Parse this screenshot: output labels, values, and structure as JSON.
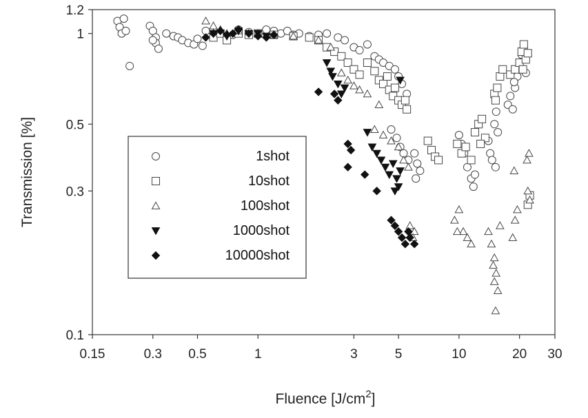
{
  "chart_data": {
    "type": "scatter",
    "title": "",
    "xlabel": "Fluence [J/cm",
    "xlabel_sup": "2",
    "xlabel_close": "]",
    "ylabel": "Transmission [%]",
    "x_scale": "log",
    "y_scale": "log",
    "xlim": [
      0.15,
      30
    ],
    "ylim": [
      0.1,
      1.2
    ],
    "grid": false,
    "legend_position": "left-center",
    "x_ticks": [
      {
        "value": 0.15,
        "label": "0.15"
      },
      {
        "value": 0.3,
        "label": "0.3"
      },
      {
        "value": 0.5,
        "label": "0.5"
      },
      {
        "value": 1,
        "label": "1"
      },
      {
        "value": 3,
        "label": "3"
      },
      {
        "value": 5,
        "label": "5"
      },
      {
        "value": 10,
        "label": "10"
      },
      {
        "value": 20,
        "label": "20"
      },
      {
        "value": 30,
        "label": "30"
      }
    ],
    "y_ticks": [
      {
        "value": 0.1,
        "label": "0.1"
      },
      {
        "value": 0.3,
        "label": "0.3"
      },
      {
        "value": 0.5,
        "label": "0.5"
      },
      {
        "value": 1,
        "label": "1"
      },
      {
        "value": 1.2,
        "label": "1.2"
      }
    ],
    "series": [
      {
        "name": "1shot",
        "marker": "circle-open",
        "points": [
          [
            0.2,
            1.1
          ],
          [
            0.205,
            1.05
          ],
          [
            0.21,
            1.0
          ],
          [
            0.215,
            1.12
          ],
          [
            0.22,
            1.02
          ],
          [
            0.23,
            0.78
          ],
          [
            0.29,
            1.06
          ],
          [
            0.3,
            1.02
          ],
          [
            0.31,
            0.97
          ],
          [
            0.31,
            0.93
          ],
          [
            0.32,
            0.89
          ],
          [
            0.3,
            0.95
          ],
          [
            0.35,
            1.0
          ],
          [
            0.38,
            0.98
          ],
          [
            0.4,
            0.97
          ],
          [
            0.42,
            0.95
          ],
          [
            0.45,
            0.93
          ],
          [
            0.48,
            0.92
          ],
          [
            0.5,
            0.96
          ],
          [
            0.53,
            0.91
          ],
          [
            0.55,
            1.02
          ],
          [
            0.6,
            0.98
          ],
          [
            0.65,
            1.0
          ],
          [
            0.7,
            0.97
          ],
          [
            0.75,
            0.99
          ],
          [
            0.8,
            1.03
          ],
          [
            0.9,
            1.01
          ],
          [
            1.0,
            1.0
          ],
          [
            1.1,
            1.03
          ],
          [
            1.2,
            1.02
          ],
          [
            1.3,
            1.0
          ],
          [
            1.4,
            1.02
          ],
          [
            1.5,
            0.99
          ],
          [
            1.6,
            1.0
          ],
          [
            1.8,
            0.98
          ],
          [
            2.0,
            0.99
          ],
          [
            2.2,
            1.0
          ],
          [
            2.5,
            0.97
          ],
          [
            2.7,
            0.95
          ],
          [
            3.0,
            0.9
          ],
          [
            3.2,
            0.88
          ],
          [
            3.5,
            0.92
          ],
          [
            3.8,
            0.84
          ],
          [
            4.0,
            0.82
          ],
          [
            4.2,
            0.8
          ],
          [
            4.5,
            0.78
          ],
          [
            4.8,
            0.76
          ],
          [
            5.0,
            0.72
          ],
          [
            5.2,
            0.68
          ],
          [
            5.5,
            0.63
          ],
          [
            4.6,
            0.48
          ],
          [
            4.9,
            0.45
          ],
          [
            5.1,
            0.42
          ],
          [
            5.3,
            0.4
          ],
          [
            5.6,
            0.38
          ],
          [
            6.0,
            0.4
          ],
          [
            6.2,
            0.37
          ],
          [
            6.4,
            0.35
          ],
          [
            6.1,
            0.33
          ],
          [
            10.0,
            0.46
          ],
          [
            10.3,
            0.43
          ],
          [
            10.6,
            0.4
          ],
          [
            11.0,
            0.36
          ],
          [
            11.5,
            0.33
          ],
          [
            11.8,
            0.31
          ],
          [
            12.0,
            0.34
          ],
          [
            14.0,
            0.44
          ],
          [
            14.3,
            0.4
          ],
          [
            14.6,
            0.38
          ],
          [
            15.0,
            0.5
          ],
          [
            15.3,
            0.55
          ],
          [
            15.6,
            0.47
          ],
          [
            15.2,
            0.36
          ],
          [
            17.5,
            0.58
          ],
          [
            18.0,
            0.62
          ],
          [
            18.5,
            0.56
          ],
          [
            19.0,
            0.66
          ],
          [
            19.5,
            0.72
          ],
          [
            20.0,
            0.78
          ],
          [
            20.5,
            0.85
          ],
          [
            21.0,
            0.9
          ],
          [
            21.5,
            0.74
          ],
          [
            18.8,
            0.69
          ]
        ]
      },
      {
        "name": "10shot",
        "marker": "square-open",
        "points": [
          [
            0.6,
            0.97
          ],
          [
            0.65,
            1.0
          ],
          [
            0.7,
            0.95
          ],
          [
            0.8,
            1.0
          ],
          [
            0.9,
            0.99
          ],
          [
            1.0,
            1.0
          ],
          [
            1.2,
            0.99
          ],
          [
            1.5,
            0.98
          ],
          [
            1.8,
            0.97
          ],
          [
            2.0,
            0.95
          ],
          [
            2.2,
            0.9
          ],
          [
            2.4,
            0.87
          ],
          [
            2.6,
            0.84
          ],
          [
            2.8,
            0.8
          ],
          [
            3.0,
            0.76
          ],
          [
            3.2,
            0.73
          ],
          [
            3.5,
            0.8
          ],
          [
            3.8,
            0.75
          ],
          [
            4.0,
            0.7
          ],
          [
            4.2,
            0.68
          ],
          [
            4.5,
            0.65
          ],
          [
            4.7,
            0.62
          ],
          [
            5.0,
            0.6
          ],
          [
            5.2,
            0.58
          ],
          [
            5.5,
            0.56
          ],
          [
            4.4,
            0.72
          ],
          [
            4.8,
            0.66
          ],
          [
            5.4,
            0.6
          ],
          [
            7.0,
            0.44
          ],
          [
            7.3,
            0.41
          ],
          [
            7.6,
            0.39
          ],
          [
            7.9,
            0.38
          ],
          [
            9.8,
            0.43
          ],
          [
            10.3,
            0.4
          ],
          [
            10.8,
            0.42
          ],
          [
            11.5,
            0.38
          ],
          [
            12.0,
            0.47
          ],
          [
            12.5,
            0.5
          ],
          [
            13.0,
            0.52
          ],
          [
            13.5,
            0.45
          ],
          [
            12.8,
            0.43
          ],
          [
            15.0,
            0.63
          ],
          [
            15.5,
            0.66
          ],
          [
            16.0,
            0.72
          ],
          [
            15.2,
            0.6
          ],
          [
            16.5,
            0.76
          ],
          [
            18.0,
            0.73
          ],
          [
            19.0,
            0.76
          ],
          [
            20.0,
            0.8
          ],
          [
            20.5,
            0.87
          ],
          [
            21.0,
            0.92
          ],
          [
            21.5,
            0.82
          ],
          [
            22.0,
            0.86
          ],
          [
            20.8,
            0.76
          ],
          [
            22.0,
            0.27
          ],
          [
            22.5,
            0.29
          ]
        ]
      },
      {
        "name": "100shot",
        "marker": "triangle-open",
        "points": [
          [
            0.55,
            1.1
          ],
          [
            0.6,
            1.06
          ],
          [
            0.65,
            1.03
          ],
          [
            0.7,
            1.0
          ],
          [
            0.8,
            1.02
          ],
          [
            1.0,
            1.0
          ],
          [
            1.2,
            0.99
          ],
          [
            1.5,
            0.98
          ],
          [
            2.0,
            0.95
          ],
          [
            2.3,
            0.9
          ],
          [
            2.6,
            0.74
          ],
          [
            2.8,
            0.7
          ],
          [
            3.0,
            0.67
          ],
          [
            3.2,
            0.65
          ],
          [
            3.5,
            0.63
          ],
          [
            4.0,
            0.58
          ],
          [
            3.8,
            0.48
          ],
          [
            4.2,
            0.46
          ],
          [
            4.6,
            0.44
          ],
          [
            5.0,
            0.42
          ],
          [
            5.3,
            0.38
          ],
          [
            5.6,
            0.36
          ],
          [
            6.0,
            0.22
          ],
          [
            5.9,
            0.21
          ],
          [
            5.7,
            0.23
          ],
          [
            9.5,
            0.24
          ],
          [
            10.0,
            0.26
          ],
          [
            10.5,
            0.22
          ],
          [
            11.0,
            0.21
          ],
          [
            11.5,
            0.2
          ],
          [
            9.8,
            0.22
          ],
          [
            14.0,
            0.22
          ],
          [
            14.5,
            0.2
          ],
          [
            15.0,
            0.18
          ],
          [
            15.3,
            0.16
          ],
          [
            15.6,
            0.14
          ],
          [
            15.0,
            0.15
          ],
          [
            15.2,
            0.12
          ],
          [
            14.8,
            0.17
          ],
          [
            16.0,
            0.23
          ],
          [
            18.5,
            0.21
          ],
          [
            19.0,
            0.24
          ],
          [
            19.5,
            0.26
          ],
          [
            18.8,
            0.35
          ],
          [
            22.0,
            0.3
          ],
          [
            22.5,
            0.28
          ],
          [
            22.3,
            0.4
          ],
          [
            21.8,
            0.38
          ]
        ]
      },
      {
        "name": "1000shot",
        "marker": "triangle-down-filled",
        "points": [
          [
            0.6,
            1.0
          ],
          [
            0.7,
            0.98
          ],
          [
            0.8,
            1.02
          ],
          [
            0.9,
            1.0
          ],
          [
            1.0,
            1.0
          ],
          [
            1.1,
            0.98
          ],
          [
            2.2,
            0.8
          ],
          [
            2.3,
            0.75
          ],
          [
            2.35,
            0.72
          ],
          [
            2.5,
            0.68
          ],
          [
            2.6,
            0.63
          ],
          [
            2.7,
            0.66
          ],
          [
            3.5,
            0.47
          ],
          [
            3.7,
            0.42
          ],
          [
            3.9,
            0.4
          ],
          [
            4.1,
            0.38
          ],
          [
            4.3,
            0.36
          ],
          [
            4.5,
            0.34
          ],
          [
            4.7,
            0.37
          ],
          [
            4.9,
            0.33
          ],
          [
            5.0,
            0.31
          ],
          [
            5.1,
            0.35
          ],
          [
            4.8,
            0.3
          ],
          [
            5.1,
            0.7
          ]
        ]
      },
      {
        "name": "10000shot",
        "marker": "diamond-filled",
        "points": [
          [
            0.55,
            0.97
          ],
          [
            0.6,
            1.0
          ],
          [
            0.65,
            1.02
          ],
          [
            0.7,
            0.99
          ],
          [
            0.75,
            1.0
          ],
          [
            0.8,
            1.03
          ],
          [
            0.9,
            1.0
          ],
          [
            1.0,
            0.98
          ],
          [
            1.1,
            0.97
          ],
          [
            1.2,
            0.99
          ],
          [
            2.0,
            0.64
          ],
          [
            2.4,
            0.63
          ],
          [
            2.5,
            0.6
          ],
          [
            2.8,
            0.43
          ],
          [
            2.8,
            0.36
          ],
          [
            2.9,
            0.41
          ],
          [
            3.4,
            0.34
          ],
          [
            3.9,
            0.3
          ],
          [
            4.6,
            0.24
          ],
          [
            4.8,
            0.23
          ],
          [
            5.0,
            0.22
          ],
          [
            5.2,
            0.21
          ],
          [
            5.4,
            0.2
          ],
          [
            5.6,
            0.22
          ],
          [
            5.7,
            0.21
          ],
          [
            6.0,
            0.2
          ]
        ]
      }
    ]
  }
}
